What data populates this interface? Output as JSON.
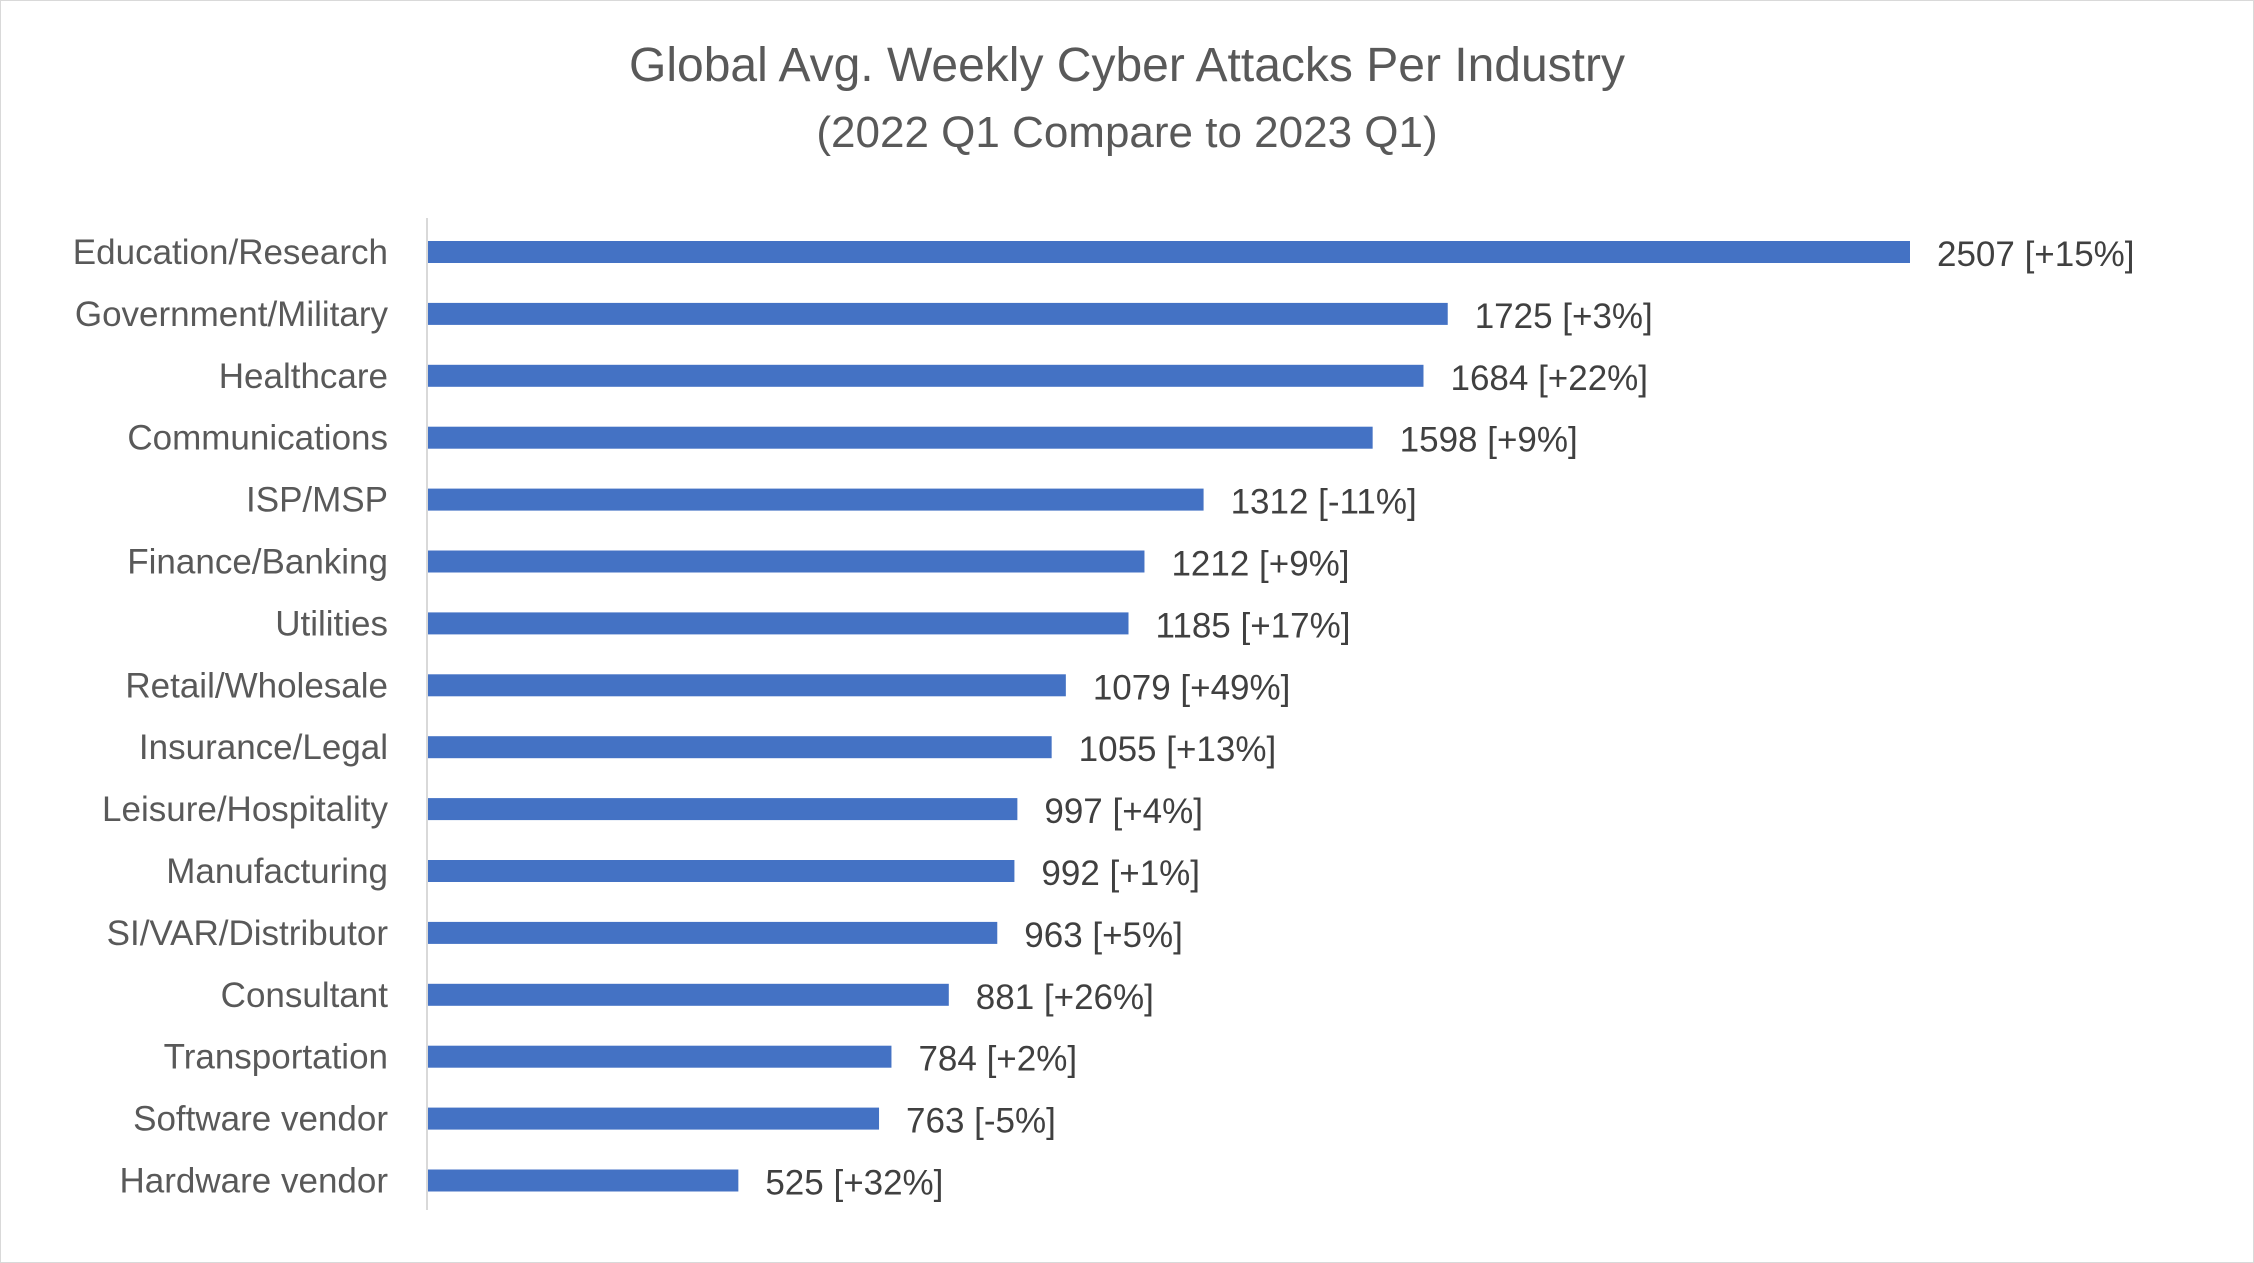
{
  "chart_data": {
    "type": "bar",
    "orientation": "horizontal",
    "title": "Global Avg. Weekly Cyber Attacks Per Industry",
    "subtitle": "(2022 Q1 Compare to 2023 Q1)",
    "xlabel": "",
    "ylabel": "",
    "bar_color": "#4472c4",
    "grid": false,
    "legend": "none",
    "xlim": [
      0,
      2507
    ],
    "categories": [
      "Education/Research",
      "Government/Military",
      "Healthcare",
      "Communications",
      "ISP/MSP",
      "Finance/Banking",
      "Utilities",
      "Retail/Wholesale",
      "Insurance/Legal",
      "Leisure/Hospitality",
      "Manufacturing",
      "SI/VAR/Distributor",
      "Consultant",
      "Transportation",
      "Software vendor",
      "Hardware vendor"
    ],
    "values": [
      2507,
      1725,
      1684,
      1598,
      1312,
      1212,
      1185,
      1079,
      1055,
      997,
      992,
      963,
      881,
      784,
      763,
      525
    ],
    "data_labels": [
      "2507 [+15%]",
      "1725 [+3%]",
      "1684 [+22%]",
      "1598 [+9%]",
      "1312 [-11%]",
      "1212 [+9%]",
      "1185 [+17%]",
      "1079 [+49%]",
      "1055 [+13%]",
      "997 [+4%]",
      "992 [+1%]",
      "963 [+5%]",
      "881 [+26%]",
      "784 [+2%]",
      "763 [-5%]",
      "525 [+32%]"
    ]
  }
}
